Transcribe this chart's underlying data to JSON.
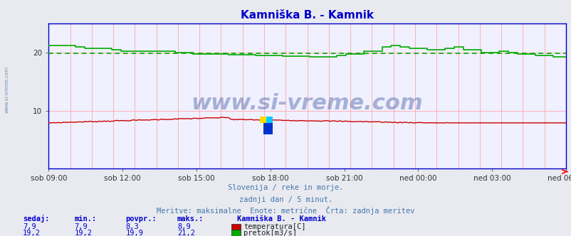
{
  "title": "Kamniška B. - Kamnik",
  "title_color": "#0000cc",
  "bg_color": "#e8eaf0",
  "plot_bg_color": "#f0f0ff",
  "grid_color_major": "#ff9999",
  "watermark": "www.si-vreme.com",
  "watermark_color": "#1a3a8a",
  "watermark_alpha": 0.35,
  "xlabel_times": [
    "sob 09:00",
    "sob 12:00",
    "sob 15:00",
    "sob 18:00",
    "sob 21:00",
    "ned 00:00",
    "ned 03:00",
    "ned 06:00"
  ],
  "ylim": [
    0,
    25
  ],
  "yticks": [
    10,
    20
  ],
  "border_color": "#0000cc",
  "tick_color": "#333333",
  "footer_line1": "Slovenija / reke in morje.",
  "footer_line2": "zadnji dan / 5 minut.",
  "footer_line3": "Meritve: maksimalne  Enote: metrične  Črta: zadnja meritev",
  "footer_color": "#4477aa",
  "table_header": [
    "sedaj:",
    "min.:",
    "povpr.:",
    "maks.:"
  ],
  "table_color": "#0000cc",
  "station_name": "Kamniška B. - Kamnik",
  "row1_values": [
    "7,9",
    "7,9",
    "8,3",
    "8,9"
  ],
  "row1_label": "temperatura[C]",
  "row1_color": "#cc0000",
  "row2_values": [
    "19,2",
    "19,2",
    "19,9",
    "21,2"
  ],
  "row2_label": "pretok[m3/s]",
  "row2_color": "#00aa00",
  "flow_avg": 19.9,
  "n_points": 288,
  "temp_min": 7.9,
  "temp_max": 8.9,
  "flow_min": 19.2,
  "flow_max": 21.2,
  "side_watermark": "www.si-vreme.com",
  "side_watermark_color": "#6688aa"
}
